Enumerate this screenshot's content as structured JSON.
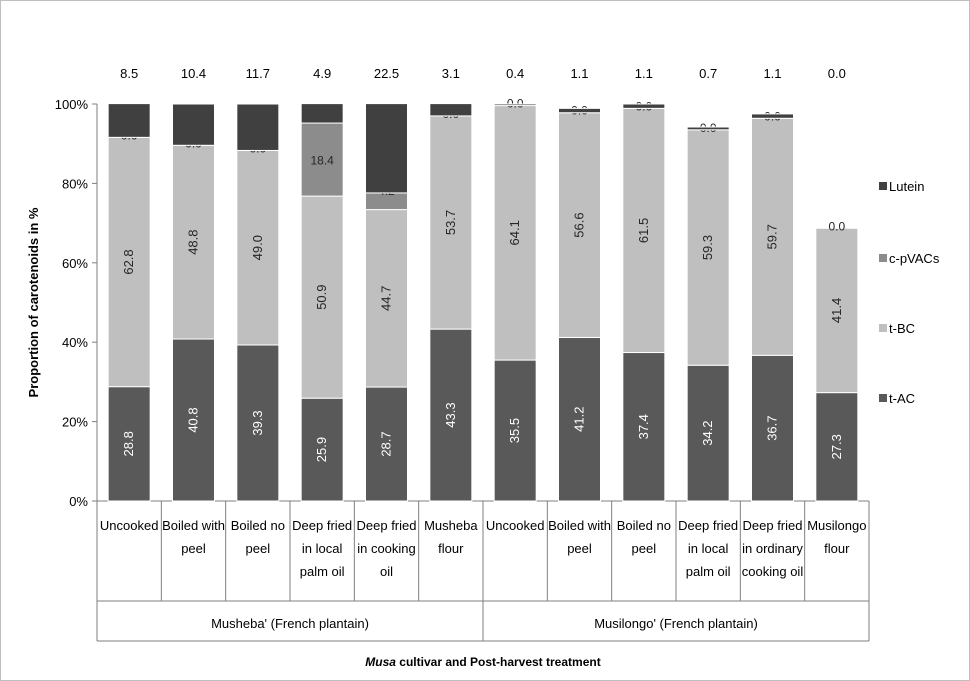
{
  "chart_data": {
    "type": "bar",
    "stacked": "percent",
    "ylabel": "Proportion of carotenoids in %",
    "xlabel_italic": "Musa",
    "xlabel_rest": " cultivar and Post-harvest treatment",
    "y_ticks": [
      "0%",
      "20%",
      "40%",
      "60%",
      "80%",
      "100%"
    ],
    "ylim": [
      0,
      100
    ],
    "groups": [
      {
        "name": "Musheba' (French plantain)",
        "start": 0,
        "count": 6
      },
      {
        "name": "Musilongo' (French plantain)",
        "start": 6,
        "count": 6
      }
    ],
    "categories": [
      [
        "Uncooked"
      ],
      [
        "Boiled with",
        "peel"
      ],
      [
        "Boiled no",
        "peel"
      ],
      [
        "Deep fried",
        "in local",
        "palm oil"
      ],
      [
        "Deep fried",
        "in cooking",
        "oil"
      ],
      [
        "Musheba",
        "flour"
      ],
      [
        "Uncooked"
      ],
      [
        "Boiled with",
        "peel"
      ],
      [
        "Boiled no",
        "peel"
      ],
      [
        "Deep fried",
        "in local",
        "palm oil"
      ],
      [
        "Deep fried",
        "in ordinary",
        "cooking oil"
      ],
      [
        "Musilongo",
        "flour"
      ]
    ],
    "top_labels": [
      "8.5",
      "10.4",
      "11.7",
      "4.9",
      "22.5",
      "3.1",
      "0.4",
      "1.1",
      "1.1",
      "0.7",
      "1.1",
      "0.0"
    ],
    "series": [
      {
        "name": "t-AC",
        "color": "#595959",
        "label_color": "#ffffff",
        "values": [
          28.8,
          40.8,
          39.3,
          25.9,
          28.7,
          43.3,
          35.5,
          41.2,
          37.4,
          34.2,
          36.7,
          27.3
        ],
        "labels": [
          "28.8",
          "40.8",
          "39.3",
          "25.9",
          "28.7",
          "43.3",
          "35.5",
          "41.2",
          "37.4",
          "34.2",
          "36.7",
          "27.3"
        ]
      },
      {
        "name": "t-BC",
        "color": "#bfbfbf",
        "label_color": "#262626",
        "values": [
          62.8,
          48.8,
          49.0,
          50.9,
          44.7,
          53.7,
          64.1,
          56.6,
          61.5,
          59.3,
          59.7,
          41.4
        ],
        "labels": [
          "62.8",
          "48.8",
          "49.0",
          "50.9",
          "44.7",
          "53.7",
          "64.1",
          "56.6",
          "61.5",
          "59.3",
          "59.7",
          "41.4"
        ]
      },
      {
        "name": "c-pVACs",
        "color": "#8c8c8c",
        "label_color": "#262626",
        "values": [
          0.0,
          0.0,
          0.0,
          18.4,
          4.2,
          0.0,
          0.0,
          0.0,
          0.0,
          0.0,
          0.0,
          0.0
        ],
        "labels": [
          "0.0",
          "0.0",
          "0.0",
          "18.4",
          "4.2",
          "0.0",
          "0.0",
          "0.0",
          "0.0",
          "0.0",
          "0.0",
          "0.0"
        ]
      },
      {
        "name": "Lutein",
        "color": "#404040",
        "label_color": "#ffffff",
        "values": [
          8.5,
          10.4,
          11.7,
          4.9,
          22.5,
          3.1,
          0.4,
          1.1,
          1.1,
          0.7,
          1.1,
          0.0
        ],
        "labels": []
      }
    ],
    "legend_order": [
      "Lutein",
      "c-pVACs",
      "t-BC",
      "t-AC"
    ],
    "legend_position": "right",
    "grid": false
  }
}
